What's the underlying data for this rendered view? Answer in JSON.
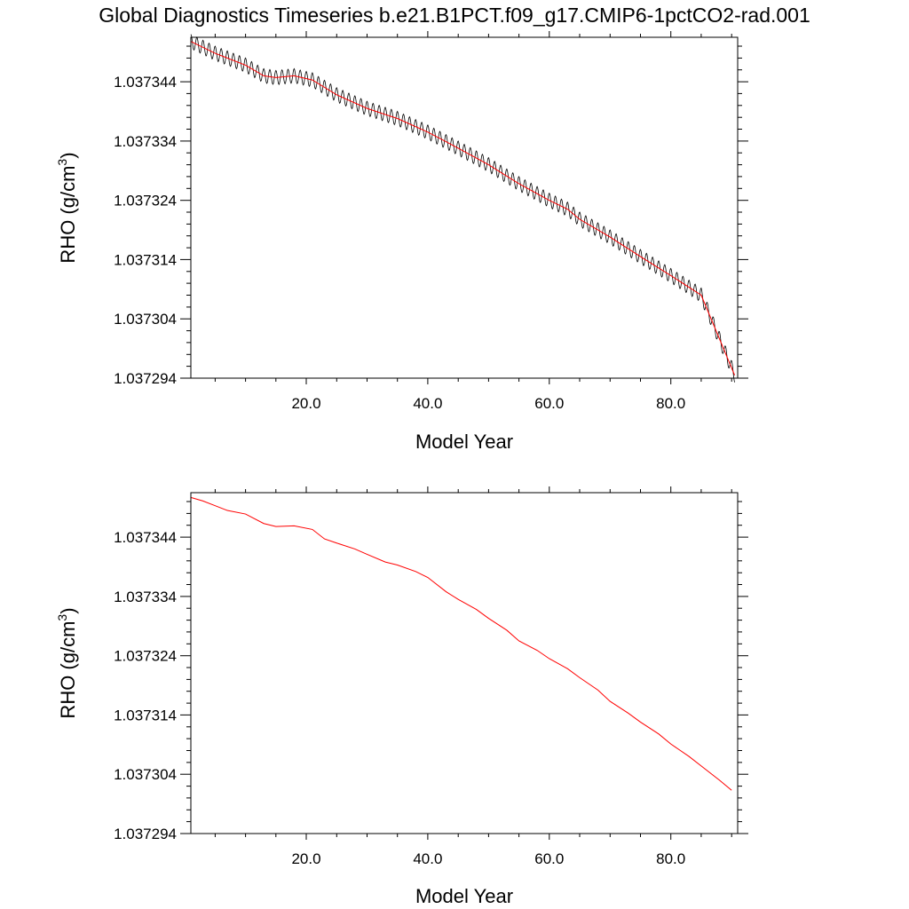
{
  "title": "Global Diagnostics Timeseries b.e21.B1PCT.f09_g17.CMIP6-1pctCO2-rad.001",
  "colors": {
    "monthly": "#000000",
    "annual": "#ff0000"
  },
  "chart_data": [
    {
      "type": "line",
      "panel": "top",
      "xlabel": "Model Year",
      "ylabel": "RHO (g/cm",
      "ylabel_sup": "3",
      "ylabel_close": ")",
      "xlim": [
        1,
        91
      ],
      "ylim": [
        1.037294,
        1.0373515
      ],
      "xticks": [
        20,
        40,
        60,
        80
      ],
      "xtick_labels": [
        "20.0",
        "40.0",
        "60.0",
        "80.0"
      ],
      "yticks": [
        1.037294,
        1.037304,
        1.037314,
        1.037324,
        1.037334,
        1.037344
      ],
      "ytick_labels": [
        "1.037294",
        "1.037304",
        "1.037314",
        "1.037324",
        "1.037334",
        "1.037344"
      ],
      "seasonal_amplitude": 1.2e-06,
      "series": [
        {
          "style": "monthly",
          "x": [
            1,
            5,
            10,
            13,
            15,
            18,
            21,
            25,
            30,
            35,
            40,
            45,
            50,
            55,
            60,
            63,
            65,
            70,
            75,
            80,
            85,
            90.5
          ],
          "y": [
            1.0373508,
            1.0373488,
            1.0373468,
            1.037345,
            1.0373447,
            1.037345,
            1.0373443,
            1.0373418,
            1.0373395,
            1.0373378,
            1.0373355,
            1.0373328,
            1.03733,
            1.0373268,
            1.037324,
            1.0373225,
            1.0373208,
            1.0373178,
            1.0373145,
            1.0373113,
            1.037308,
            1.0372945
          ]
        },
        {
          "style": "annual",
          "x": [
            1,
            5,
            10,
            13,
            15,
            18,
            21,
            25,
            30,
            35,
            40,
            45,
            50,
            55,
            60,
            63,
            65,
            70,
            75,
            80,
            85,
            90.5
          ],
          "y": [
            1.0373508,
            1.0373488,
            1.0373468,
            1.037345,
            1.0373447,
            1.037345,
            1.0373443,
            1.0373418,
            1.0373395,
            1.0373378,
            1.0373355,
            1.0373328,
            1.03733,
            1.0373268,
            1.037324,
            1.0373225,
            1.0373208,
            1.0373178,
            1.0373145,
            1.0373113,
            1.037308,
            1.0372945
          ]
        }
      ]
    },
    {
      "type": "line",
      "panel": "bottom",
      "xlabel": "Model Year",
      "ylabel": "RHO (g/cm",
      "ylabel_sup": "3",
      "ylabel_close": ")",
      "xlim": [
        1,
        91
      ],
      "ylim": [
        1.037294,
        1.0373515
      ],
      "xticks": [
        20,
        40,
        60,
        80
      ],
      "xtick_labels": [
        "20.0",
        "40.0",
        "60.0",
        "80.0"
      ],
      "yticks": [
        1.037294,
        1.037304,
        1.037314,
        1.037324,
        1.037334,
        1.037344
      ],
      "ytick_labels": [
        "1.037294",
        "1.037304",
        "1.037314",
        "1.037324",
        "1.037334",
        "1.037344"
      ],
      "series": [
        {
          "style": "annual",
          "x": [
            1,
            3,
            5,
            7,
            10,
            13,
            15,
            18,
            21,
            23,
            25,
            28,
            30,
            33,
            35,
            38,
            40,
            43,
            45,
            48,
            50,
            53,
            55,
            58,
            60,
            63,
            65,
            68,
            70,
            73,
            75,
            78,
            80,
            83,
            85,
            88,
            90
          ],
          "y": [
            1.0373507,
            1.0373501,
            1.0373493,
            1.0373485,
            1.0373479,
            1.0373463,
            1.0373458,
            1.0373459,
            1.0373453,
            1.0373437,
            1.037343,
            1.037342,
            1.0373411,
            1.0373398,
            1.0373393,
            1.0373382,
            1.0373372,
            1.0373348,
            1.0373335,
            1.0373318,
            1.0373303,
            1.0373283,
            1.0373265,
            1.0373249,
            1.0373235,
            1.0373218,
            1.0373203,
            1.0373182,
            1.0373163,
            1.0373143,
            1.0373128,
            1.0373108,
            1.0373091,
            1.037307,
            1.0373054,
            1.037303,
            1.0373013
          ]
        }
      ]
    }
  ]
}
